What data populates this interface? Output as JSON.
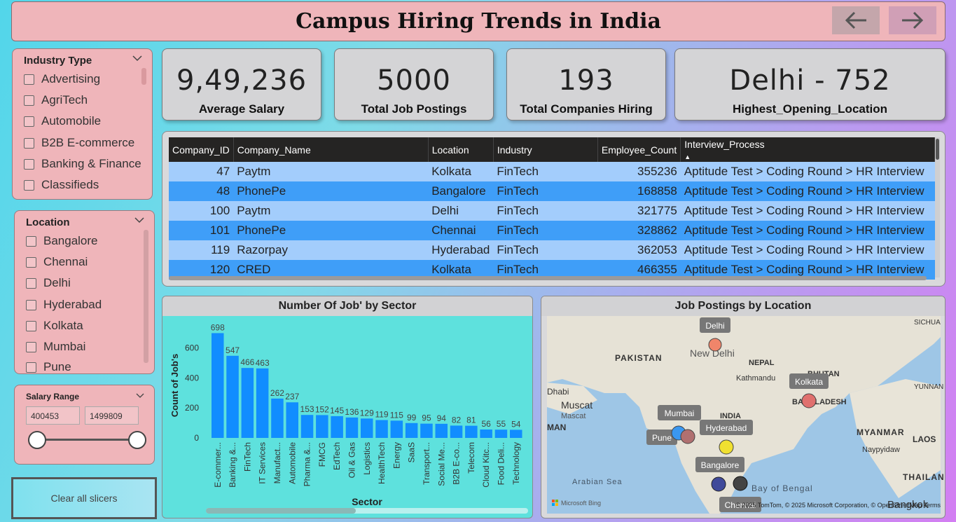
{
  "header": {
    "title": "Campus Hiring Trends in India",
    "back_icon": "arrow-left-icon",
    "forward_icon": "arrow-right-icon"
  },
  "slicers": {
    "industry": {
      "title": "Industry Type",
      "items": [
        "Advertising",
        "AgriTech",
        "Automobile",
        "B2B E-commerce",
        "Banking & Finance",
        "Classifieds"
      ]
    },
    "location": {
      "title": "Location",
      "items": [
        "Bangalore",
        "Chennai",
        "Delhi",
        "Hyderabad",
        "Kolkata",
        "Mumbai",
        "Pune"
      ]
    },
    "salary": {
      "title": "Salary Range",
      "min": "400453",
      "max": "1499809",
      "selected_fraction": [
        0,
        1
      ]
    }
  },
  "kpis": [
    {
      "value": "9,49,236",
      "label": "Average Salary"
    },
    {
      "value": "5000",
      "label": "Total Job Postings"
    },
    {
      "value": "193",
      "label": "Total Companies Hiring"
    },
    {
      "value": "Delhi - 752",
      "label": "Highest_Opening_Location"
    }
  ],
  "table": {
    "columns": [
      "Company_ID",
      "Company_Name",
      "Location",
      "Industry",
      "Employee_Count",
      "Interview_Process"
    ],
    "rows": [
      [
        "47",
        "Paytm",
        "Kolkata",
        "FinTech",
        "355236",
        "Aptitude Test > Coding Round > HR Interview"
      ],
      [
        "48",
        "PhonePe",
        "Bangalore",
        "FinTech",
        "168858",
        "Aptitude Test > Coding Round > HR Interview"
      ],
      [
        "100",
        "Paytm",
        "Delhi",
        "FinTech",
        "321775",
        "Aptitude Test > Coding Round > HR Interview"
      ],
      [
        "101",
        "PhonePe",
        "Chennai",
        "FinTech",
        "328862",
        "Aptitude Test > Coding Round > HR Interview"
      ],
      [
        "119",
        "Razorpay",
        "Hyderabad",
        "FinTech",
        "362053",
        "Aptitude Test > Coding Round > HR Interview"
      ],
      [
        "120",
        "CRED",
        "Kolkata",
        "FinTech",
        "466355",
        "Aptitude Test > Coding Round > HR Interview"
      ]
    ]
  },
  "bar_title": "Number Of Job' by Sector",
  "chart_data": {
    "type": "bar",
    "title": "Number Of Job' by Sector",
    "xlabel": "Sector",
    "ylabel": "Count of Job's",
    "ylim": [
      0,
      700
    ],
    "yticks": [
      "0",
      "200",
      "400",
      "600"
    ],
    "categories": [
      "E-commer...",
      "Banking &...",
      "FinTech",
      "IT Services",
      "Manufact...",
      "Automobile",
      "Pharma &...",
      "FMCG",
      "EdTech",
      "Oil & Gas",
      "Logistics",
      "HealthTech",
      "Energy",
      "SaaS",
      "Transport...",
      "Social Me...",
      "B2B E-co...",
      "Telecom",
      "Cloud Kitc...",
      "Food Deli...",
      "Technology"
    ],
    "values": [
      698,
      547,
      466,
      463,
      262,
      237,
      153,
      152,
      145,
      136,
      129,
      119,
      115,
      99,
      95,
      94,
      82,
      81,
      56,
      55,
      54
    ],
    "bar_color": "#118dff"
  },
  "map": {
    "title": "Job Postings by Location",
    "base_labels": [
      "PAKISTAN",
      "New Delhi",
      "NEPAL",
      "Kathmandu",
      "BHUTAN",
      "BANGLADESH",
      "INDIA",
      "Muscat",
      "Mascat",
      "Dhabi",
      "MAN",
      "MYANMAR",
      "Naypyidaw",
      "LAOS",
      "THAILAND",
      "Bangkok",
      "Arabian Sea",
      "Bay of Bengal",
      "SICHUA",
      "YUNNAN"
    ],
    "pins": [
      {
        "name": "Delhi",
        "color": "#f0856a"
      },
      {
        "name": "Kolkata",
        "color": "#e0706e"
      },
      {
        "name": "Mumbai",
        "color": "#3a97f0"
      },
      {
        "name": "Pune",
        "color": "#b07070"
      },
      {
        "name": "Hyderabad",
        "color": "#f0e030"
      },
      {
        "name": "Bangalore",
        "color": "#404a9a"
      },
      {
        "name": "Chennai",
        "color": "#444444"
      }
    ],
    "attribution": "© 2025 TomTom, © 2025 Microsoft Corporation, © OpenStreetMap  Terms",
    "logo": "Microsoft Bing"
  },
  "clear_button": "Clear all slicers"
}
